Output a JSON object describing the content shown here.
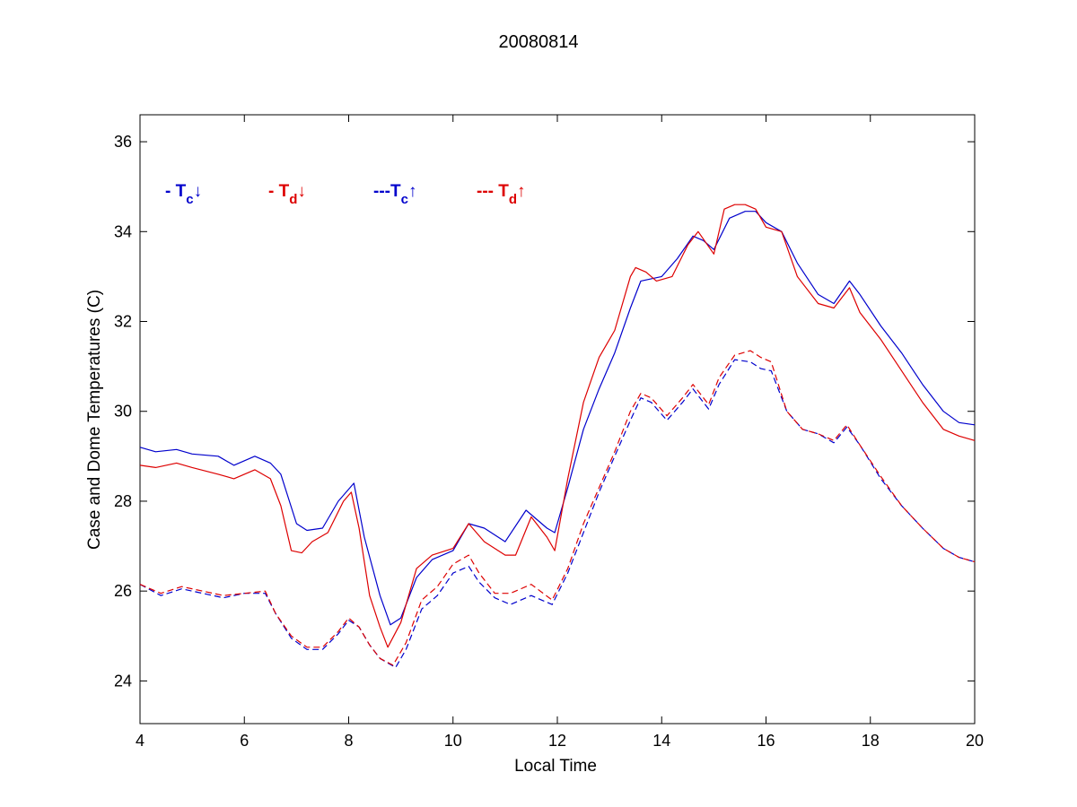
{
  "chart_data": {
    "type": "line",
    "title": "20080814",
    "xlabel": "Local Time",
    "ylabel": "Case and Dome Temperatures (C)",
    "xlim": [
      4,
      20
    ],
    "ylim": [
      23.05,
      36.6
    ],
    "xticks": [
      4,
      6,
      8,
      10,
      12,
      14,
      16,
      18,
      20
    ],
    "yticks": [
      24,
      26,
      28,
      30,
      32,
      34,
      36
    ],
    "legend_placement": "top-left",
    "legend": [
      {
        "prefix": "- T",
        "sub": "c",
        "arrow": "↓",
        "color": "#0000cc"
      },
      {
        "prefix": "- T",
        "sub": "d",
        "arrow": "↓",
        "color": "#dd0000"
      },
      {
        "prefix": "---T",
        "sub": "c",
        "arrow": "↑",
        "color": "#0000cc"
      },
      {
        "prefix": "--- T",
        "sub": "d",
        "arrow": "↑",
        "color": "#dd0000"
      }
    ],
    "series": [
      {
        "key": "Tc_down",
        "color": "#0000cc",
        "dash": false,
        "x": [
          4.0,
          4.3,
          4.7,
          5.0,
          5.5,
          5.8,
          6.2,
          6.5,
          6.7,
          7.0,
          7.2,
          7.5,
          7.8,
          8.1,
          8.3,
          8.6,
          8.8,
          9.0,
          9.3,
          9.6,
          10.0,
          10.3,
          10.6,
          11.0,
          11.4,
          11.8,
          11.95,
          12.2,
          12.5,
          12.8,
          13.1,
          13.4,
          13.6,
          14.0,
          14.3,
          14.6,
          14.8,
          15.0,
          15.3,
          15.6,
          15.8,
          16.0,
          16.3,
          16.6,
          17.0,
          17.3,
          17.6,
          17.8,
          18.2,
          18.6,
          19.0,
          19.4,
          19.7,
          20.0
        ],
        "y": [
          29.2,
          29.1,
          29.15,
          29.05,
          29.0,
          28.8,
          29.0,
          28.85,
          28.6,
          27.5,
          27.35,
          27.4,
          28.0,
          28.4,
          27.2,
          25.9,
          25.25,
          25.4,
          26.3,
          26.7,
          26.9,
          27.5,
          27.4,
          27.1,
          27.8,
          27.4,
          27.3,
          28.3,
          29.6,
          30.5,
          31.3,
          32.3,
          32.9,
          33.0,
          33.4,
          33.9,
          33.8,
          33.6,
          34.3,
          34.45,
          34.45,
          34.2,
          34.0,
          33.3,
          32.6,
          32.4,
          32.9,
          32.6,
          31.9,
          31.3,
          30.6,
          30.0,
          29.75,
          29.7
        ]
      },
      {
        "key": "Td_down",
        "color": "#dd0000",
        "dash": false,
        "x": [
          4.0,
          4.3,
          4.7,
          5.0,
          5.5,
          5.8,
          6.2,
          6.5,
          6.7,
          6.9,
          7.1,
          7.3,
          7.6,
          7.9,
          8.05,
          8.2,
          8.4,
          8.6,
          8.75,
          9.0,
          9.3,
          9.6,
          10.0,
          10.3,
          10.6,
          11.0,
          11.2,
          11.5,
          11.8,
          11.95,
          12.2,
          12.5,
          12.8,
          13.1,
          13.4,
          13.5,
          13.7,
          13.9,
          14.2,
          14.5,
          14.7,
          15.0,
          15.2,
          15.4,
          15.6,
          15.8,
          16.0,
          16.3,
          16.6,
          17.0,
          17.3,
          17.6,
          17.8,
          18.2,
          18.6,
          19.0,
          19.4,
          19.7,
          20.0
        ],
        "y": [
          28.8,
          28.75,
          28.85,
          28.75,
          28.6,
          28.5,
          28.7,
          28.5,
          27.9,
          26.9,
          26.85,
          27.1,
          27.3,
          28.0,
          28.2,
          27.4,
          25.9,
          25.2,
          24.75,
          25.3,
          26.5,
          26.8,
          26.95,
          27.5,
          27.1,
          26.8,
          26.8,
          27.65,
          27.2,
          26.9,
          28.5,
          30.2,
          31.2,
          31.8,
          33.0,
          33.2,
          33.1,
          32.9,
          33.0,
          33.7,
          34.0,
          33.5,
          34.5,
          34.6,
          34.6,
          34.5,
          34.1,
          34.0,
          33.0,
          32.4,
          32.3,
          32.75,
          32.2,
          31.6,
          30.9,
          30.2,
          29.6,
          29.45,
          29.35
        ]
      },
      {
        "key": "Tc_up",
        "color": "#0000cc",
        "dash": true,
        "x": [
          4.0,
          4.4,
          4.8,
          5.2,
          5.6,
          6.0,
          6.4,
          6.6,
          6.9,
          7.2,
          7.5,
          7.8,
          8.0,
          8.2,
          8.4,
          8.6,
          8.9,
          9.1,
          9.4,
          9.7,
          10.0,
          10.3,
          10.5,
          10.8,
          11.1,
          11.5,
          11.9,
          12.2,
          12.5,
          12.8,
          13.1,
          13.4,
          13.6,
          13.8,
          14.1,
          14.4,
          14.6,
          14.9,
          15.1,
          15.4,
          15.7,
          15.9,
          16.1,
          16.4,
          16.7,
          17.0,
          17.3,
          17.55,
          17.8,
          18.2,
          18.6,
          19.0,
          19.4,
          19.7,
          20.0
        ],
        "y": [
          26.15,
          25.9,
          26.05,
          25.95,
          25.85,
          25.95,
          25.95,
          25.5,
          24.95,
          24.7,
          24.7,
          25.05,
          25.35,
          25.2,
          24.8,
          24.5,
          24.3,
          24.7,
          25.6,
          25.9,
          26.4,
          26.55,
          26.2,
          25.85,
          25.7,
          25.9,
          25.7,
          26.4,
          27.3,
          28.2,
          29.0,
          29.8,
          30.3,
          30.2,
          29.8,
          30.2,
          30.5,
          30.05,
          30.6,
          31.15,
          31.1,
          30.95,
          30.9,
          30.0,
          29.6,
          29.5,
          29.3,
          29.65,
          29.25,
          28.5,
          27.9,
          27.4,
          26.95,
          26.75,
          26.65
        ]
      },
      {
        "key": "Td_up",
        "color": "#dd0000",
        "dash": true,
        "x": [
          4.0,
          4.4,
          4.8,
          5.2,
          5.6,
          6.0,
          6.4,
          6.6,
          6.9,
          7.2,
          7.5,
          7.8,
          8.0,
          8.2,
          8.4,
          8.6,
          8.85,
          9.1,
          9.4,
          9.7,
          10.0,
          10.3,
          10.5,
          10.8,
          11.1,
          11.5,
          11.9,
          12.2,
          12.5,
          12.8,
          13.1,
          13.4,
          13.6,
          13.8,
          14.1,
          14.4,
          14.6,
          14.9,
          15.1,
          15.4,
          15.7,
          15.9,
          16.1,
          16.4,
          16.7,
          17.0,
          17.3,
          17.55,
          17.8,
          18.2,
          18.6,
          19.0,
          19.4,
          19.7,
          20.0
        ],
        "y": [
          26.15,
          25.95,
          26.1,
          26.0,
          25.9,
          25.95,
          26.0,
          25.5,
          25.0,
          24.75,
          24.75,
          25.1,
          25.4,
          25.2,
          24.8,
          24.5,
          24.35,
          24.85,
          25.8,
          26.1,
          26.6,
          26.8,
          26.4,
          25.95,
          25.95,
          26.15,
          25.8,
          26.5,
          27.5,
          28.3,
          29.1,
          30.0,
          30.4,
          30.3,
          29.9,
          30.3,
          30.6,
          30.15,
          30.75,
          31.25,
          31.35,
          31.2,
          31.1,
          30.0,
          29.6,
          29.5,
          29.35,
          29.7,
          29.25,
          28.55,
          27.9,
          27.4,
          26.95,
          26.75,
          26.65
        ]
      }
    ]
  }
}
